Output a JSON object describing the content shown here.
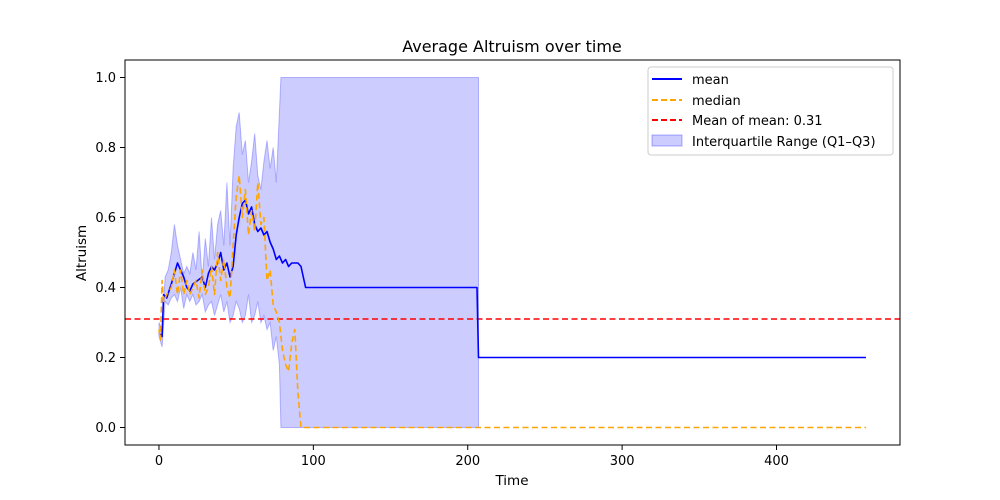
{
  "chart_data": {
    "type": "line",
    "title": "Average Altruism over time",
    "xlabel": "Time",
    "ylabel": "Altruism",
    "xlim": [
      -22,
      480
    ],
    "ylim": [
      -0.05,
      1.05
    ],
    "xticks": [
      0,
      100,
      200,
      300,
      400
    ],
    "xtick_labels": [
      "0",
      "100",
      "200",
      "300",
      "400"
    ],
    "yticks": [
      0.0,
      0.2,
      0.4,
      0.6,
      0.8,
      1.0
    ],
    "ytick_labels": [
      "0.0",
      "0.2",
      "0.4",
      "0.6",
      "0.8",
      "1.0"
    ],
    "grid": false,
    "legend_position": "top-right",
    "series": [
      {
        "name": "mean",
        "style": "solid",
        "color": "#0000ff",
        "x": [
          0,
          2,
          3,
          5,
          8,
          10,
          12,
          14,
          16,
          18,
          20,
          22,
          25,
          28,
          30,
          32,
          34,
          36,
          38,
          40,
          42,
          44,
          46,
          48,
          50,
          52,
          54,
          56,
          58,
          60,
          62,
          64,
          66,
          68,
          70,
          72,
          74,
          76,
          78,
          80,
          82,
          84,
          86,
          88,
          90,
          92,
          95,
          100,
          150,
          206,
          207,
          210,
          300,
          400,
          458
        ],
        "y": [
          0.27,
          0.26,
          0.38,
          0.37,
          0.41,
          0.44,
          0.47,
          0.45,
          0.43,
          0.4,
          0.39,
          0.41,
          0.42,
          0.43,
          0.4,
          0.44,
          0.46,
          0.45,
          0.47,
          0.5,
          0.45,
          0.47,
          0.43,
          0.46,
          0.55,
          0.6,
          0.64,
          0.65,
          0.61,
          0.63,
          0.58,
          0.56,
          0.57,
          0.55,
          0.56,
          0.53,
          0.51,
          0.48,
          0.49,
          0.47,
          0.48,
          0.46,
          0.47,
          0.47,
          0.47,
          0.46,
          0.4,
          0.4,
          0.4,
          0.4,
          0.2,
          0.2,
          0.2,
          0.2,
          0.2
        ]
      },
      {
        "name": "median",
        "style": "dashed",
        "color": "#ffa500",
        "x": [
          0,
          1,
          2,
          3,
          5,
          8,
          10,
          12,
          14,
          16,
          18,
          20,
          22,
          24,
          26,
          28,
          30,
          32,
          34,
          36,
          38,
          40,
          42,
          44,
          46,
          48,
          50,
          52,
          54,
          56,
          58,
          60,
          62,
          64,
          66,
          68,
          70,
          72,
          74,
          76,
          78,
          80,
          82,
          84,
          86,
          88,
          90,
          92,
          95,
          150,
          300,
          458
        ],
        "y": [
          0.28,
          0.25,
          0.42,
          0.36,
          0.38,
          0.4,
          0.45,
          0.38,
          0.45,
          0.38,
          0.42,
          0.38,
          0.4,
          0.42,
          0.37,
          0.45,
          0.38,
          0.4,
          0.46,
          0.38,
          0.5,
          0.42,
          0.48,
          0.4,
          0.37,
          0.52,
          0.66,
          0.72,
          0.6,
          0.68,
          0.55,
          0.62,
          0.56,
          0.7,
          0.58,
          0.6,
          0.42,
          0.45,
          0.35,
          0.33,
          0.3,
          0.22,
          0.18,
          0.16,
          0.24,
          0.28,
          0.1,
          0.0,
          0.0,
          0.0,
          0.0,
          0.0
        ]
      },
      {
        "name": "Mean of mean: 0.31",
        "style": "dashed",
        "color": "#ff0000",
        "y_constant": 0.31
      }
    ],
    "band": {
      "name": "Interquartile Range (Q1–Q3)",
      "color": "#0000ff",
      "opacity": 0.2,
      "x": [
        0,
        2,
        4,
        6,
        8,
        10,
        12,
        14,
        16,
        18,
        20,
        22,
        24,
        26,
        28,
        30,
        32,
        34,
        36,
        38,
        40,
        42,
        44,
        46,
        48,
        50,
        52,
        54,
        56,
        58,
        60,
        62,
        64,
        66,
        68,
        70,
        72,
        74,
        76,
        78,
        79,
        100,
        150,
        207
      ],
      "lower": [
        0.26,
        0.23,
        0.36,
        0.35,
        0.37,
        0.38,
        0.36,
        0.4,
        0.34,
        0.38,
        0.36,
        0.38,
        0.35,
        0.36,
        0.38,
        0.33,
        0.35,
        0.36,
        0.32,
        0.35,
        0.38,
        0.33,
        0.36,
        0.3,
        0.32,
        0.36,
        0.34,
        0.3,
        0.32,
        0.38,
        0.3,
        0.32,
        0.36,
        0.3,
        0.32,
        0.28,
        0.3,
        0.22,
        0.26,
        0.18,
        0.0,
        0.0,
        0.0,
        0.0
      ],
      "upper": [
        0.3,
        0.28,
        0.43,
        0.45,
        0.5,
        0.58,
        0.52,
        0.48,
        0.44,
        0.46,
        0.44,
        0.5,
        0.45,
        0.56,
        0.42,
        0.54,
        0.46,
        0.6,
        0.48,
        0.58,
        0.62,
        0.52,
        0.7,
        0.52,
        0.74,
        0.86,
        0.9,
        0.78,
        0.82,
        0.7,
        0.76,
        0.84,
        0.72,
        0.68,
        0.76,
        0.82,
        0.74,
        0.8,
        0.7,
        0.9,
        1.0,
        1.0,
        1.0,
        1.0
      ]
    }
  },
  "legend": {
    "items": [
      "mean",
      "median",
      "Mean of mean: 0.31",
      "Interquartile Range (Q1–Q3)"
    ]
  }
}
